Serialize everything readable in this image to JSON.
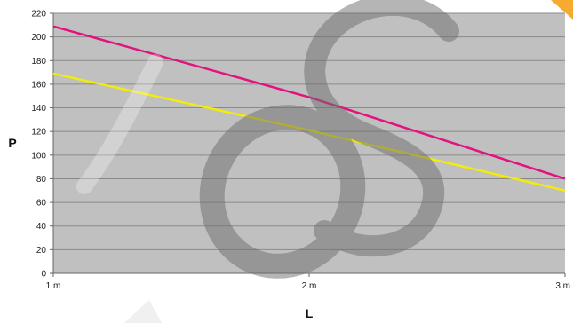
{
  "chart_data": {
    "type": "line",
    "title": "",
    "xlabel": "L",
    "ylabel": "P",
    "x": [
      1,
      2,
      3
    ],
    "x_tick_labels": [
      "1 m",
      "2 m",
      "3 m"
    ],
    "ylim": [
      0,
      220
    ],
    "y_ticks": [
      0,
      20,
      40,
      60,
      80,
      100,
      120,
      140,
      160,
      180,
      200,
      220
    ],
    "grid": true,
    "legend": "none",
    "colors": {
      "plot_background": "#c0c0c0",
      "gridline": "#8a8a8a",
      "watermark": "#6e6e6e"
    },
    "series": [
      {
        "values": [
          209,
          149,
          80
        ],
        "color": "#e2127f"
      },
      {
        "values": [
          169,
          121,
          70
        ],
        "color": "#f2ec0a"
      }
    ]
  },
  "watermark": {
    "shape": "large-gray-letter-S-and-O-watermark",
    "accent_color": "#f5a11a"
  }
}
